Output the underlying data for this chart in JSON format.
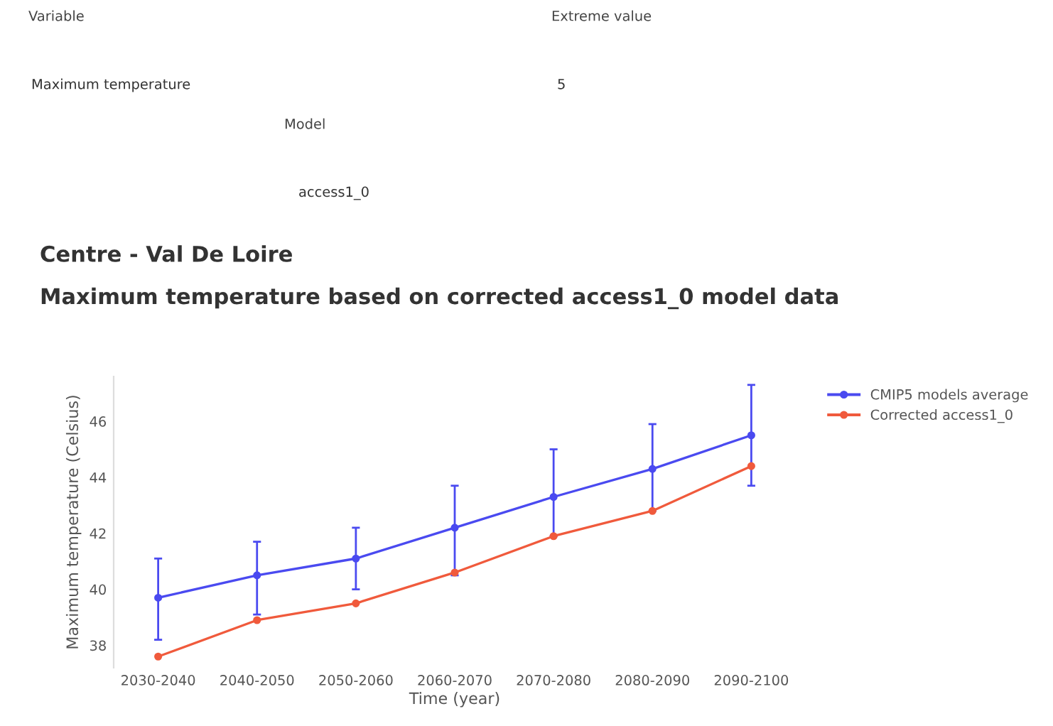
{
  "chart_data": {
    "type": "line",
    "title": "Centre - Val De Loire",
    "subtitle": "Maximum temperature based on corrected access1_0 model data",
    "xlabel": "Time (year)",
    "ylabel": "Maximum temperature (Celsius)",
    "annotations": [
      "Variable",
      "Extreme value",
      "Maximum temperature",
      "5",
      "Model",
      "access1_0"
    ],
    "categories": [
      "2030-2040",
      "2040-2050",
      "2050-2060",
      "2060-2070",
      "2070-2080",
      "2080-2090",
      "2090-2100"
    ],
    "series": [
      {
        "name": "CMIP5 models average",
        "color": "#4a4af0",
        "values": [
          39.7,
          40.5,
          41.1,
          42.2,
          43.3,
          44.3,
          45.5
        ],
        "errors": [
          [
            38.2,
            41.1
          ],
          [
            39.1,
            41.7
          ],
          [
            40.0,
            42.2
          ],
          [
            40.5,
            43.7
          ],
          [
            41.9,
            45.0
          ],
          [
            42.8,
            45.9
          ],
          [
            43.7,
            47.3
          ]
        ]
      },
      {
        "name": "Corrected access1_0",
        "color": "#f05a3c",
        "values": [
          37.6,
          38.9,
          39.5,
          40.6,
          41.9,
          42.8,
          44.4
        ]
      }
    ],
    "ylim": [
      37.2,
      47.6
    ],
    "yticks": [
      38,
      40,
      42,
      44,
      46
    ],
    "grid": false,
    "legend": "top right",
    "marker": "circle",
    "line_style": "solid"
  }
}
